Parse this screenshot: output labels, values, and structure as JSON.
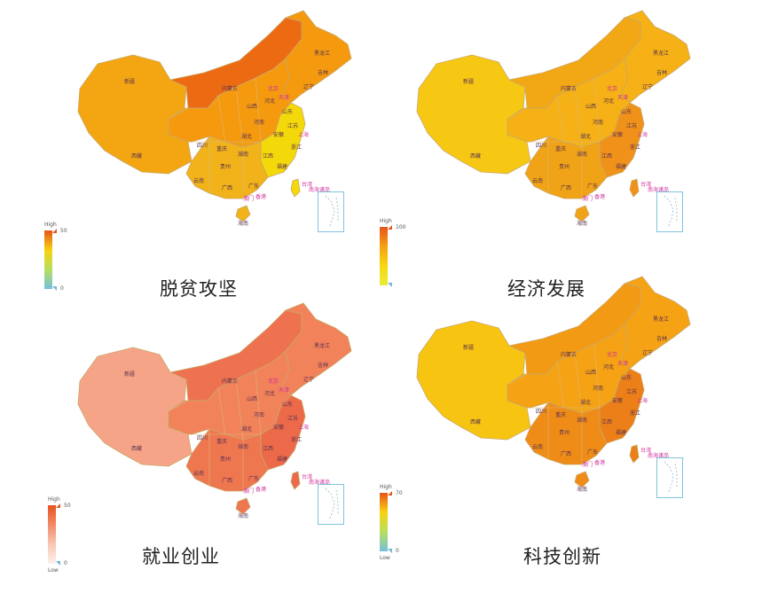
{
  "panels": [
    {
      "title": "脱贫攻坚",
      "legend": {
        "high": "High",
        "low": "",
        "max": "50",
        "min": "0"
      },
      "colors": {
        "base": "#f59a0f",
        "north": "#ec6a12",
        "east": "#f4d90a",
        "south": "#f1b21a",
        "west": "#f3a612"
      },
      "gradient": [
        "#e6541a",
        "#f7d20f",
        "#b8df5f",
        "#74c0dc"
      ],
      "labels": {
        "xinjiang": "新疆",
        "xizang": "西藏",
        "heilongjiang": "黑龙江",
        "jilin": "吉林",
        "liaoning": "辽宁",
        "neimenggu": "内蒙古",
        "beijing": "北京",
        "tianjin": "天津",
        "hebei": "河北",
        "shanxi": "山西",
        "shandong": "山东",
        "henan": "河南",
        "jiangsu": "江苏",
        "anhui": "安徽",
        "hubei": "湖北",
        "hunan": "湖南",
        "sichuan": "四川",
        "chongqing": "重庆",
        "guizhou": "贵州",
        "yunnan": "云南",
        "guangxi": "广西",
        "guangdong": "广东",
        "fujian": "福建",
        "jiangxi": "江西",
        "zhejiang": "浙江",
        "shanghai": "上海",
        "xianggang": "香港",
        "aomen": "澳门",
        "hainan": "海南",
        "taiwan": "台湾",
        "nanhai": "南海诸岛"
      }
    },
    {
      "title": "经济发展",
      "legend": {
        "high": "High",
        "low": "",
        "max": "100",
        "min": ""
      },
      "colors": {
        "base": "#f5b115",
        "north": "#f2a815",
        "east": "#f0921a",
        "south": "#f0a316",
        "west": "#f7c813"
      },
      "gradient": [
        "#e6541a",
        "#f5a012",
        "#f7d80f",
        "#e9ec3a"
      ],
      "labels": {
        "xinjiang": "新疆",
        "xizang": "西藏",
        "heilongjiang": "黑龙江",
        "jilin": "吉林",
        "liaoning": "辽宁",
        "neimenggu": "内蒙古",
        "beijing": "北京",
        "tianjin": "天津",
        "hebei": "河北",
        "shanxi": "山西",
        "shandong": "山东",
        "henan": "河南",
        "jiangsu": "江苏",
        "anhui": "安徽",
        "hubei": "湖北",
        "hunan": "湖南",
        "sichuan": "四川",
        "chongqing": "重庆",
        "guizhou": "贵州",
        "yunnan": "云南",
        "guangxi": "广西",
        "guangdong": "广东",
        "fujian": "福建",
        "jiangxi": "江西",
        "zhejiang": "浙江",
        "shanghai": "上海",
        "xianggang": "香港",
        "aomen": "澳门",
        "hainan": "海南",
        "taiwan": "台湾",
        "nanhai": "南海诸岛"
      }
    },
    {
      "title": "就业创业",
      "legend": {
        "high": "High",
        "low": "Low",
        "max": "50",
        "min": "0"
      },
      "colors": {
        "base": "#f2825a",
        "north": "#ee7250",
        "east": "#ec6a4a",
        "south": "#ef7750",
        "west": "#f6a488"
      },
      "gradient": [
        "#e8531f",
        "#f18a66",
        "#f8c6b3",
        "#fdf1ec"
      ],
      "labels": {
        "xinjiang": "新疆",
        "xizang": "西藏",
        "heilongjiang": "黑龙江",
        "jilin": "吉林",
        "liaoning": "辽宁",
        "neimenggu": "内蒙古",
        "beijing": "北京",
        "tianjin": "天津",
        "hebei": "河北",
        "shanxi": "山西",
        "shandong": "山东",
        "henan": "河南",
        "jiangsu": "江苏",
        "anhui": "安徽",
        "hubei": "湖北",
        "hunan": "湖南",
        "sichuan": "四川",
        "chongqing": "重庆",
        "guizhou": "贵州",
        "yunnan": "云南",
        "guangxi": "广西",
        "guangdong": "广东",
        "fujian": "福建",
        "jiangxi": "江西",
        "zhejiang": "浙江",
        "shanghai": "上海",
        "xianggang": "香港",
        "aomen": "澳门",
        "hainan": "海南",
        "taiwan": "台湾",
        "nanhai": "南海诸岛"
      }
    },
    {
      "title": "科技创新",
      "legend": {
        "high": "High",
        "low": "Low",
        "max": "70",
        "min": "0"
      },
      "colors": {
        "base": "#f5a214",
        "north": "#f29a14",
        "east": "#ec7f18",
        "south": "#ef8c18",
        "west": "#f8c412"
      },
      "gradient": [
        "#e6541a",
        "#f7d20f",
        "#b8df5f",
        "#74c0dc"
      ],
      "labels": {
        "xinjiang": "新疆",
        "xizang": "西藏",
        "heilongjiang": "黑龙江",
        "jilin": "吉林",
        "liaoning": "辽宁",
        "neimenggu": "内蒙古",
        "beijing": "北京",
        "tianjin": "天津",
        "hebei": "河北",
        "shanxi": "山西",
        "shandong": "山东",
        "henan": "河南",
        "jiangsu": "江苏",
        "anhui": "安徽",
        "hubei": "湖北",
        "hunan": "湖南",
        "sichuan": "四川",
        "chongqing": "重庆",
        "guizhou": "贵州",
        "yunnan": "云南",
        "guangxi": "广西",
        "guangdong": "广东",
        "fujian": "福建",
        "jiangxi": "江西",
        "zhejiang": "浙江",
        "shanghai": "上海",
        "xianggang": "香港",
        "aomen": "澳门",
        "hainan": "海南",
        "taiwan": "台湾",
        "nanhai": "南海诸岛"
      }
    }
  ]
}
